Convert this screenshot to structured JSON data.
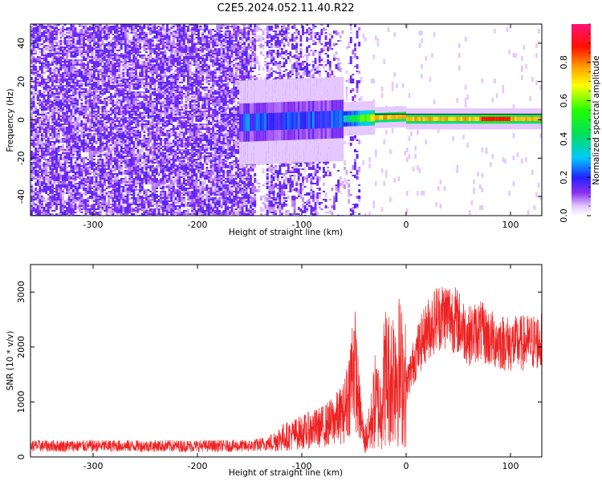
{
  "title": "C2E5.2024.052.11.40.R22",
  "colors": {
    "snr_line": "#ee2222",
    "spectrogram_noise": "#7722ee"
  },
  "chart_data": [
    {
      "type": "heatmap",
      "xlabel": "Height of straight line (km)",
      "ylabel": "Frequency (Hz)",
      "xlim": [
        -360,
        130
      ],
      "ylim": [
        -50,
        50
      ],
      "xticks": [
        -300,
        -200,
        -100,
        0,
        100
      ],
      "xtick_labels": [
        "-300",
        "-200",
        "-100",
        "0",
        "100"
      ],
      "yticks": [
        -40,
        -20,
        0,
        20,
        40
      ],
      "ytick_labels": [
        "-40",
        "-20",
        "0",
        "20",
        "40"
      ],
      "colorbar": {
        "label": "Normalized spectral amplitude",
        "range": [
          0,
          1
        ],
        "ticks": [
          0,
          0.2,
          0.4,
          0.6,
          0.8
        ],
        "tick_labels": [
          "0.0",
          "0.2",
          "0.4",
          "0.6",
          "0.8"
        ],
        "colormap": "rainbow"
      },
      "features": {
        "noise_region_x": [
          -360,
          -45
        ],
        "signal_center_freq_hz": 0.5,
        "signal_start_x": -60,
        "signal_strong_x": [
          -30,
          100
        ],
        "gaps_x": [
          [
            -145,
            -135
          ],
          [
            -65,
            -55
          ]
        ]
      }
    },
    {
      "type": "line",
      "xlabel": "Height of straight line (km)",
      "ylabel": "SNR (10 * v/v)",
      "xlim": [
        -360,
        130
      ],
      "ylim": [
        0,
        3500
      ],
      "xticks": [
        -300,
        -200,
        -100,
        0,
        100
      ],
      "xtick_labels": [
        "-300",
        "-200",
        "-100",
        "0",
        "100"
      ],
      "yticks": [
        0,
        1000,
        2000,
        3000
      ],
      "ytick_labels": [
        "0",
        "1000",
        "2000",
        "3000"
      ],
      "series": [
        {
          "x": [
            -360,
            -300,
            -250,
            -200,
            -150,
            -130,
            -120,
            -100,
            -80,
            -70,
            -60,
            -55,
            -50,
            -45,
            -40,
            -35,
            -30,
            -25,
            -20,
            -15,
            -10,
            -5,
            0,
            10,
            20,
            30,
            40,
            50,
            60,
            70,
            80,
            100,
            130
          ],
          "y": [
            200,
            200,
            200,
            200,
            200,
            250,
            350,
            450,
            550,
            650,
            800,
            1150,
            1800,
            900,
            300,
            500,
            1000,
            900,
            1500,
            1400,
            1700,
            1500,
            1300,
            1900,
            2300,
            2550,
            2600,
            2450,
            2200,
            2300,
            2150,
            2050,
            2100
          ]
        }
      ]
    }
  ]
}
